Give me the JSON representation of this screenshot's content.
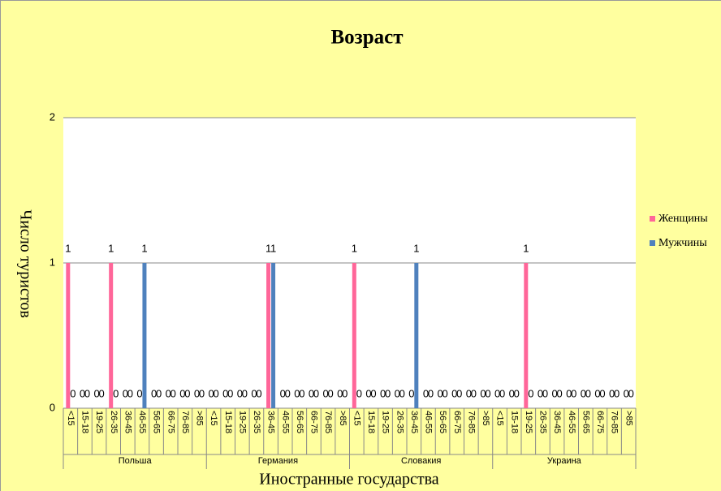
{
  "chart_data": {
    "type": "bar",
    "title": "Возраст",
    "y_label": "Число туристов",
    "x_label": "Иностранные государства",
    "category_groups": [
      "Польша",
      "Германия",
      "Словакия",
      "Украина"
    ],
    "categories": [
      "<15",
      "15-18",
      "19-25",
      "26-35",
      "36-45",
      "46-55",
      "56-65",
      "66-75",
      "76-85",
      ">85",
      "<15",
      "15-18",
      "19-25",
      "26-35",
      "36-45",
      "46-55",
      "56-65",
      "66-75",
      "76-85",
      ">85",
      "<15",
      "15-18",
      "19-25",
      "26-35",
      "36-45",
      "46-55",
      "56-65",
      "66-75",
      "76-85",
      ">85",
      "<15",
      "15-18",
      "19-25",
      "26-35",
      "36-45",
      "46-55",
      "56-65",
      "66-75",
      "76-85",
      ">85"
    ],
    "series": [
      {
        "name": "Женщины",
        "color": "#ff6699",
        "values": [
          1,
          0,
          0,
          1,
          0,
          0,
          0,
          0,
          0,
          0,
          0,
          0,
          0,
          0,
          1,
          0,
          0,
          0,
          0,
          0,
          1,
          0,
          0,
          0,
          0,
          0,
          0,
          0,
          0,
          0,
          0,
          0,
          1,
          0,
          0,
          0,
          0,
          0,
          0,
          0
        ]
      },
      {
        "name": "Мужчины",
        "color": "#4f81bd",
        "values": [
          0,
          0,
          0,
          0,
          0,
          1,
          0,
          0,
          0,
          0,
          0,
          0,
          0,
          0,
          1,
          0,
          0,
          0,
          0,
          0,
          0,
          0,
          0,
          0,
          1,
          0,
          0,
          0,
          0,
          0,
          0,
          0,
          0,
          0,
          0,
          0,
          0,
          0,
          0,
          0
        ]
      }
    ],
    "ylim": [
      0,
      2
    ],
    "yticks": [
      0,
      1,
      2
    ],
    "grid": true,
    "legend": "right",
    "data_labels": true
  }
}
